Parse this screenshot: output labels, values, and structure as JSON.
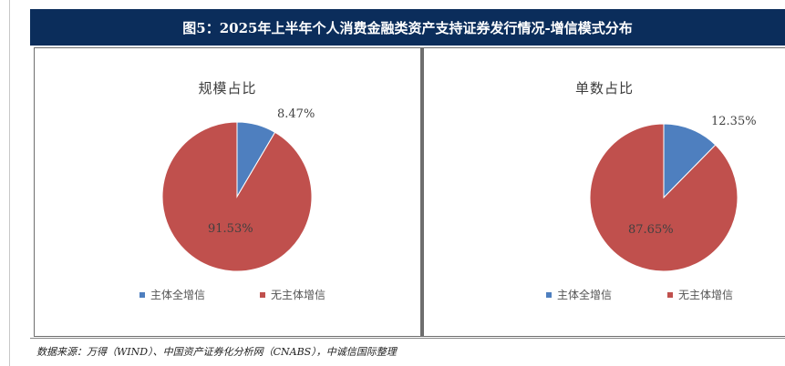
{
  "header": {
    "title": "图5：2025年上半年个人消费金融类资产支持证券发行情况-增信模式分布"
  },
  "colors": {
    "header_bg": "#0b2d5b",
    "series_1": "#4e7fbf",
    "series_2": "#c0504d"
  },
  "chart_data": [
    {
      "type": "pie",
      "title": "规模占比",
      "categories": [
        "主体全增信",
        "无主体增信"
      ],
      "values": [
        8.47,
        91.53
      ],
      "labels": [
        "8.47%",
        "91.53%"
      ],
      "legend": "bottom"
    },
    {
      "type": "pie",
      "title": "单数占比",
      "categories": [
        "主体全增信",
        "无主体增信"
      ],
      "values": [
        12.35,
        87.65
      ],
      "labels": [
        "12.35%",
        "87.65%"
      ],
      "legend": "bottom"
    }
  ],
  "source": "数据来源：万得（WIND）、中国资产证券化分析网（CNABS），中诚信国际整理"
}
